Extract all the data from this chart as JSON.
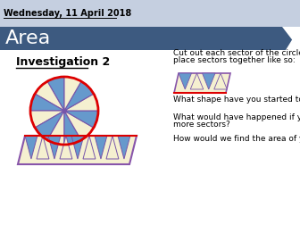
{
  "date_text": "Wednesday, 11 April 2018",
  "title_text": "Area",
  "investigation_text": "Investigation 2",
  "header_bg_color": "#c5cfe0",
  "banner_color": "#3d5a80",
  "banner_text_color": "#ffffff",
  "date_text_color": "#000000",
  "body_bg_color": "#ffffff",
  "circle_fill": "#f5f0d0",
  "circle_edge_color": "#dd0000",
  "sector_blue": "#6699cc",
  "sector_purple": "#7755aa",
  "sector_cream": "#f5f0d0",
  "parallelogram_border": "#8855aa",
  "parallelogram_bottom": "#dd0000",
  "num_sectors": 12,
  "text_lines": [
    [
      "Cut out each sector of the circle and",
      194,
      193,
      6.5
    ],
    [
      "place sectors together like so:",
      194,
      185,
      6.5
    ],
    [
      "What shape have you started to create?",
      194,
      140,
      6.5
    ],
    [
      "What would have happened if you cut th...",
      194,
      120,
      6.5
    ],
    [
      "more sectors?",
      194,
      112,
      6.5
    ],
    [
      "How would we find the area of your new...",
      194,
      96,
      6.5
    ]
  ],
  "inv2_underline": true
}
